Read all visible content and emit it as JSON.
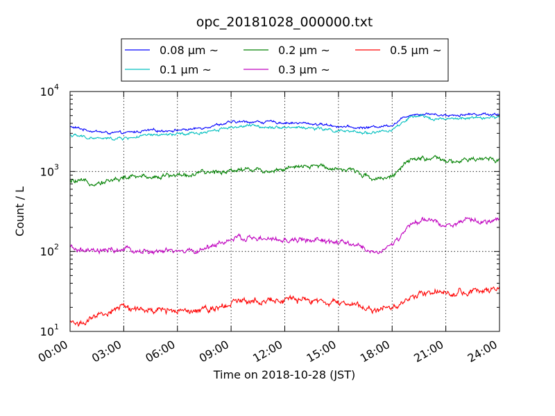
{
  "chart_data": {
    "type": "line",
    "title": "opc_20181028_000000.txt",
    "xlabel": "Time on 2018-10-28 (JST)",
    "ylabel": "Count / L",
    "yscale": "log",
    "ylim": [
      10,
      10000
    ],
    "xlim": [
      "00:00",
      "24:00"
    ],
    "x_ticks": [
      "00:00",
      "03:00",
      "06:00",
      "09:00",
      "12:00",
      "15:00",
      "18:00",
      "21:00",
      "24:00"
    ],
    "y_ticks": [
      {
        "base": "10",
        "exp": "1",
        "value": 10
      },
      {
        "base": "10",
        "exp": "2",
        "value": 100
      },
      {
        "base": "10",
        "exp": "3",
        "value": 1000
      },
      {
        "base": "10",
        "exp": "4",
        "value": 10000
      }
    ],
    "grid": true,
    "legend_position": "top-center",
    "x_hours": [
      0,
      1,
      2,
      3,
      4,
      5,
      6,
      7,
      8,
      9,
      10,
      11,
      12,
      13,
      14,
      15,
      16,
      17,
      18,
      19,
      20,
      21,
      22,
      23,
      24
    ],
    "series": [
      {
        "name": "0.08 μm ~",
        "color": "#0000ff",
        "values": [
          3600,
          3300,
          3050,
          3000,
          3200,
          3250,
          3300,
          3400,
          3800,
          4100,
          4200,
          4150,
          4100,
          4000,
          3900,
          3700,
          3500,
          3600,
          3850,
          5200,
          5300,
          5050,
          5150,
          5250,
          5200
        ]
      },
      {
        "name": "0.1 μm ~",
        "color": "#00bfbf",
        "values": [
          2850,
          2650,
          2550,
          2600,
          2750,
          2850,
          2900,
          2950,
          3300,
          3600,
          3700,
          3650,
          3600,
          3550,
          3400,
          3200,
          3050,
          3100,
          3250,
          4700,
          4800,
          4450,
          4600,
          4700,
          4700
        ]
      },
      {
        "name": "0.2 μm ~",
        "color": "#008000",
        "values": [
          750,
          720,
          760,
          830,
          860,
          880,
          900,
          920,
          980,
          1050,
          1080,
          1020,
          1080,
          1120,
          1180,
          1100,
          1000,
          820,
          880,
          1350,
          1500,
          1300,
          1350,
          1420,
          1430
        ]
      },
      {
        "name": "0.3 μm ~",
        "color": "#bf00bf",
        "values": [
          110,
          98,
          100,
          105,
          100,
          98,
          100,
          100,
          120,
          140,
          148,
          140,
          135,
          140,
          135,
          128,
          120,
          95,
          120,
          210,
          250,
          215,
          235,
          240,
          240
        ]
      },
      {
        "name": "0.5 μm ~",
        "color": "#ff0000",
        "values": [
          13,
          13,
          17,
          21,
          18,
          18,
          19,
          19,
          20,
          23,
          25,
          25,
          25,
          24,
          24,
          22,
          22,
          18,
          20,
          26,
          33,
          30,
          31,
          32,
          32
        ]
      }
    ]
  }
}
